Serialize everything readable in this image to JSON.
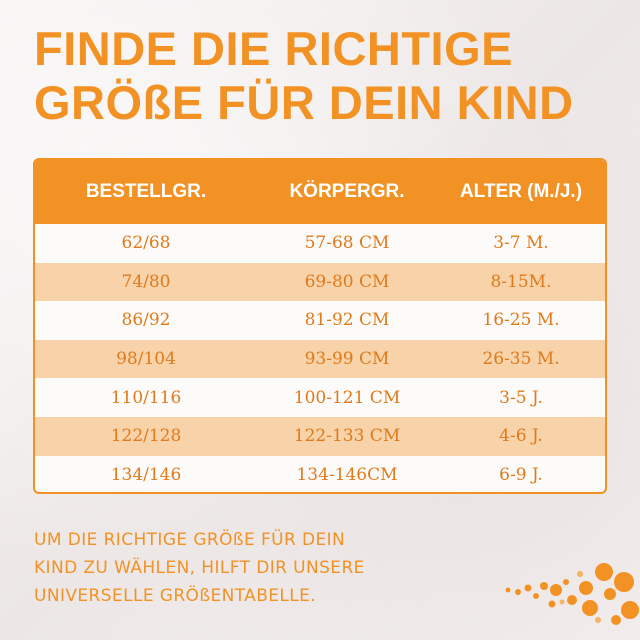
{
  "headline": {
    "line1": "FINDE DIE RICHTIGE",
    "line2": "GRÖßE FÜR DEIN KIND"
  },
  "table": {
    "headers": [
      "BESTELLGR.",
      "KÖRPERGR.",
      "ALTER (M./J.)"
    ],
    "rows": [
      [
        "62/68",
        "57-68 CM",
        "3-7 M."
      ],
      [
        "74/80",
        "69-80 CM",
        "8-15M."
      ],
      [
        "86/92",
        "81-92 CM",
        "16-25 M."
      ],
      [
        "98/104",
        "93-99 CM",
        "26-35 M."
      ],
      [
        "110/116",
        "100-121 CM",
        "3-5 J."
      ],
      [
        "122/128",
        "122-133 CM",
        "4-6 J."
      ],
      [
        "134/146",
        "134-146CM",
        "6-9 J."
      ]
    ]
  },
  "footer": {
    "line1": "UM DIE RICHTIGE GRÖßE FÜR DEIN",
    "line2": "KIND ZU WÄHLEN, HILFT DIR UNSERE",
    "line3": "UNIVERSELLE GRÖßENTABELLE."
  },
  "colors": {
    "accent": "#f39224",
    "row_highlight": "#f8d2a8",
    "cell_text": "#e07a1a"
  },
  "icons": [
    "decorative-dots-icon"
  ]
}
